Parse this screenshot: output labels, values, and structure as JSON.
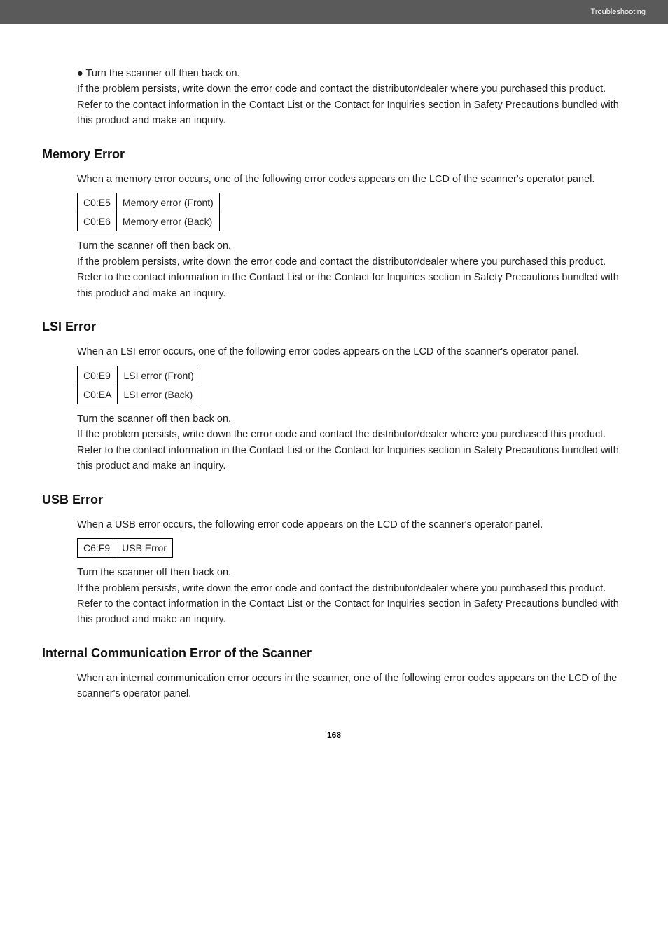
{
  "header": {
    "section": "Troubleshooting"
  },
  "intro": {
    "bullet": "● Turn the scanner off then back on.",
    "persist": "If the problem persists, write down the error code and contact the distributor/dealer where you purchased this product. Refer to the contact information in the Contact List or the Contact for Inquiries section in Safety Precautions bundled with this product and make an inquiry."
  },
  "memory": {
    "title": "Memory Error",
    "para": "When a memory error occurs, one of the following error codes appears on the LCD of the scanner's operator panel.",
    "rows": [
      {
        "code": "C0:E5",
        "desc": "Memory error (Front)"
      },
      {
        "code": "C0:E6",
        "desc": "Memory error (Back)"
      }
    ],
    "turn": "Turn the scanner off then back on.",
    "persist": "If the problem persists, write down the error code and contact the distributor/dealer where you purchased this product. Refer to the contact information in the Contact List or the Contact for Inquiries section in Safety Precautions bundled with this product and make an inquiry."
  },
  "lsi": {
    "title": "LSI Error",
    "para": "When an LSI error occurs, one of the following error codes appears on the LCD of the scanner's operator panel.",
    "rows": [
      {
        "code": "C0:E9",
        "desc": "LSI error (Front)"
      },
      {
        "code": "C0:EA",
        "desc": "LSI error (Back)"
      }
    ],
    "turn": "Turn the scanner off then back on.",
    "persist": "If the problem persists, write down the error code and contact the distributor/dealer where you purchased this product. Refer to the contact information in the Contact List or the Contact for Inquiries section in Safety Precautions bundled with this product and make an inquiry."
  },
  "usb": {
    "title": "USB Error",
    "para": "When a USB error occurs, the following error code appears on the LCD of the scanner's operator panel.",
    "rows": [
      {
        "code": "C6:F9",
        "desc": "USB Error"
      }
    ],
    "turn": "Turn the scanner off then back on.",
    "persist": "If the problem persists, write down the error code and contact the distributor/dealer where you purchased this product. Refer to the contact information in the Contact List or the Contact for Inquiries section in Safety Precautions bundled with this product and make an inquiry."
  },
  "internal": {
    "title": "Internal Communication Error of the Scanner",
    "para": "When an internal communication error occurs in the scanner, one of the following error codes appears on the LCD of the scanner's operator panel."
  },
  "page_number": "168"
}
